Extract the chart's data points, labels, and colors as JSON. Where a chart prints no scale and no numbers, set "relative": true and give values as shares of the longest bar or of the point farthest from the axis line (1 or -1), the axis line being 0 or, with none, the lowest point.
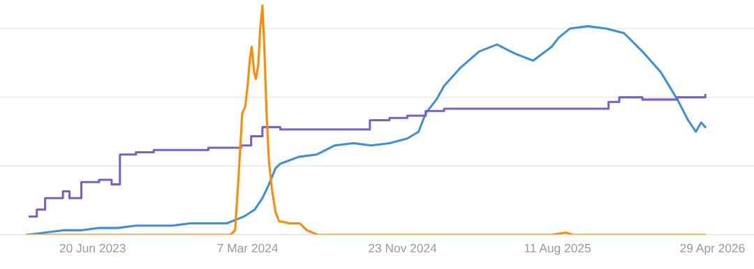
{
  "chart_data": {
    "type": "line",
    "relative": true,
    "grid": "y",
    "xlim": [
      "2023-01-15",
      "2026-07-08"
    ],
    "xticks": [
      {
        "value": "2023-06-20",
        "label": "20 Jun 2023"
      },
      {
        "value": "2024-03-07",
        "label": "7 Mar 2024"
      },
      {
        "value": "2024-11-23",
        "label": "23 Nov 2024"
      },
      {
        "value": "2025-08-11",
        "label": "11 Aug 2025"
      },
      {
        "value": "2026-04-29",
        "label": "29 Apr 2026"
      }
    ],
    "series": [
      {
        "color": "#3b8fdb",
        "x": [
          "2023-03-01",
          "2023-04-01",
          "2023-05-01",
          "2023-06-01",
          "2023-07-01",
          "2023-08-01",
          "2023-09-01",
          "2023-10-01",
          "2023-11-01",
          "2023-12-01",
          "2024-01-01",
          "2024-02-01",
          "2024-03-01",
          "2024-03-19",
          "2024-04-01",
          "2024-04-12",
          "2024-04-23",
          "2024-05-01",
          "2024-06-01",
          "2024-07-01",
          "2024-08-01",
          "2024-09-01",
          "2024-10-01",
          "2024-11-01",
          "2024-12-01",
          "2024-12-20",
          "2025-01-01",
          "2025-01-19",
          "2025-02-01",
          "2025-03-01",
          "2025-04-01",
          "2025-05-01",
          "2025-06-01",
          "2025-07-01",
          "2025-08-01",
          "2025-08-13",
          "2025-09-01",
          "2025-10-01",
          "2025-11-01",
          "2025-12-01",
          "2026-01-01",
          "2026-02-01",
          "2026-03-01",
          "2026-03-19",
          "2026-04-01",
          "2026-04-10",
          "2026-04-17"
        ],
        "values": [
          0,
          0.01,
          0.02,
          0.02,
          0.03,
          0.03,
          0.04,
          0.04,
          0.04,
          0.05,
          0.05,
          0.05,
          0.08,
          0.11,
          0.16,
          0.22,
          0.29,
          0.31,
          0.34,
          0.35,
          0.39,
          0.4,
          0.39,
          0.4,
          0.42,
          0.45,
          0.53,
          0.59,
          0.65,
          0.73,
          0.8,
          0.83,
          0.79,
          0.76,
          0.82,
          0.86,
          0.9,
          0.91,
          0.9,
          0.88,
          0.8,
          0.71,
          0.59,
          0.5,
          0.45,
          0.49,
          0.47
        ]
      },
      {
        "type": "step",
        "color": "#7a5fc8",
        "x": [
          "2023-03-06",
          "2023-03-18",
          "2023-04-01",
          "2023-05-01",
          "2023-05-12",
          "2023-06-01",
          "2023-07-01",
          "2023-07-22",
          "2023-08-05",
          "2023-09-01",
          "2023-10-01",
          "2023-12-01",
          "2024-01-01",
          "2024-02-01",
          "2024-02-25",
          "2024-03-13",
          "2024-04-01",
          "2024-05-01",
          "2024-07-01",
          "2024-08-01",
          "2024-09-29",
          "2024-11-01",
          "2024-12-01",
          "2025-01-01",
          "2025-02-01",
          "2025-04-18",
          "2025-07-28",
          "2025-10-18",
          "2025-11-05",
          "2025-11-23",
          "2026-01-01",
          "2026-03-01",
          "2026-04-17"
        ],
        "values": [
          0.08,
          0.11,
          0.16,
          0.19,
          0.16,
          0.23,
          0.24,
          0.22,
          0.35,
          0.36,
          0.37,
          0.37,
          0.38,
          0.38,
          0.39,
          0.43,
          0.47,
          0.46,
          0.46,
          0.46,
          0.5,
          0.51,
          0.52,
          0.54,
          0.55,
          0.55,
          0.55,
          0.55,
          0.58,
          0.6,
          0.59,
          0.6,
          0.61
        ]
      },
      {
        "color": "#ff8a00",
        "x": [
          "2023-03-01",
          "2024-01-01",
          "2024-02-07",
          "2024-02-15",
          "2024-02-21",
          "2024-02-27",
          "2024-03-03",
          "2024-03-07",
          "2024-03-11",
          "2024-03-14",
          "2024-03-18",
          "2024-03-21",
          "2024-03-25",
          "2024-03-28",
          "2024-04-01",
          "2024-04-04",
          "2024-04-08",
          "2024-04-12",
          "2024-04-17",
          "2024-04-23",
          "2024-04-29",
          "2024-05-17",
          "2024-06-03",
          "2024-06-15",
          "2024-07-03",
          "2024-08-01",
          "2025-08-01",
          "2025-08-25",
          "2025-09-06",
          "2026-04-17"
        ],
        "values": [
          0,
          0,
          0,
          0.02,
          0.26,
          0.53,
          0.56,
          0.65,
          0.77,
          0.82,
          0.71,
          0.68,
          0.74,
          0.89,
          1,
          0.83,
          0.53,
          0.32,
          0.2,
          0.1,
          0.06,
          0.05,
          0.05,
          0.02,
          0,
          0,
          0,
          0.01,
          0,
          0
        ]
      }
    ]
  }
}
